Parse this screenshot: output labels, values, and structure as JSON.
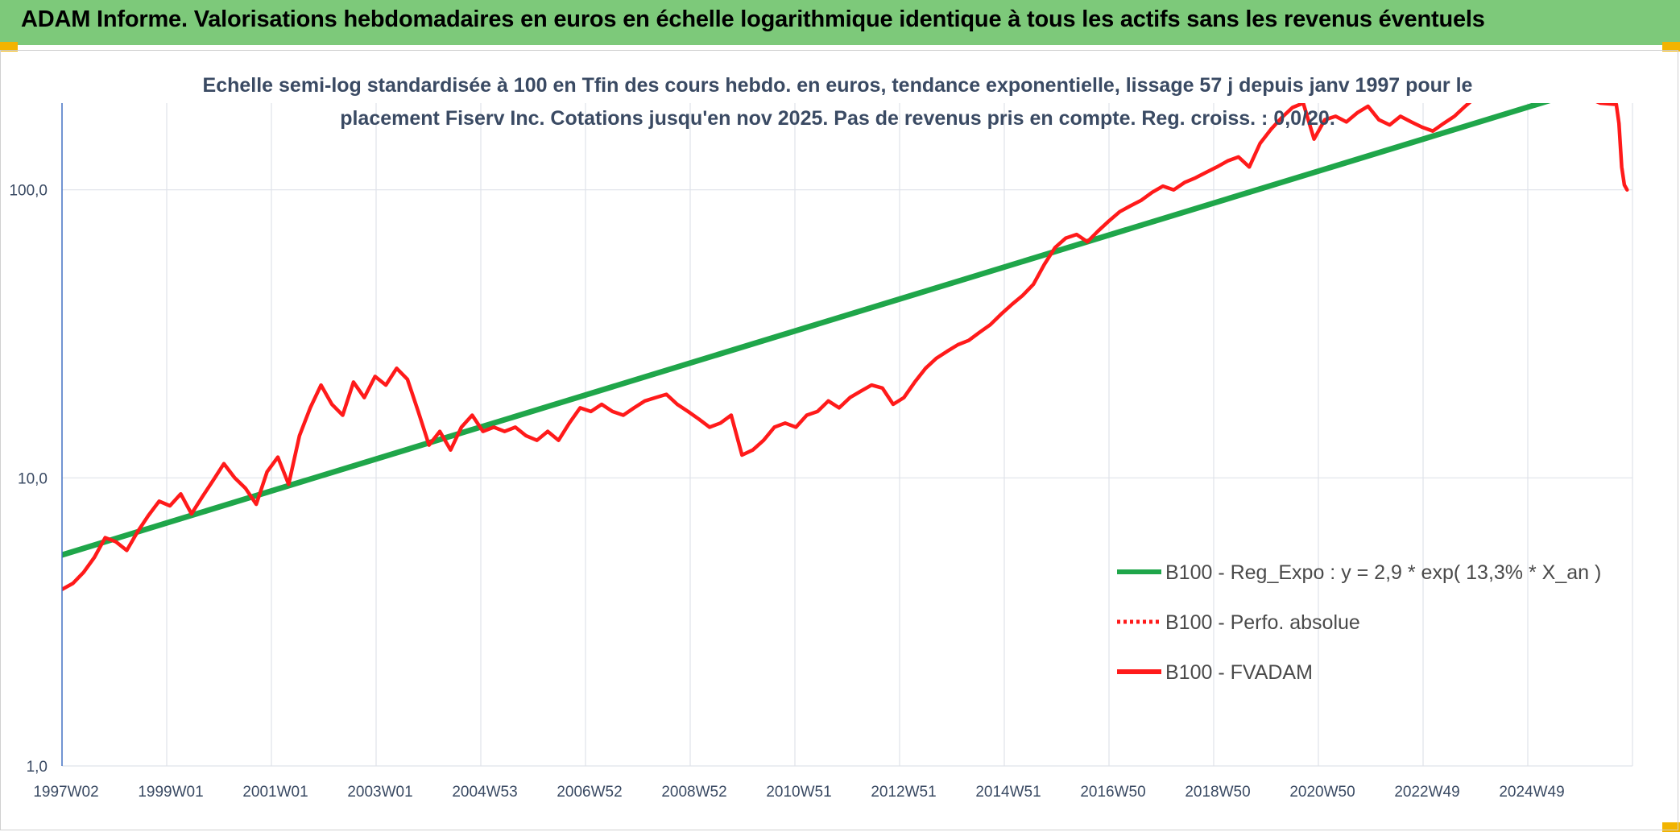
{
  "header": {
    "title": "ADAM Informe. Valorisations hebdomadaires en euros en échelle logarithmique identique à tous les actifs sans les revenus éventuels"
  },
  "chart_data": {
    "type": "line",
    "title_line1": "Echelle semi-log standardisée à 100 en Tfin des cours hebdo. en euros, tendance exponentielle, lissage 57 j depuis janv 1997 pour le",
    "title_line2": "placement Fiserv Inc. Cotations jusqu'en nov 2025. Pas de revenus pris en compte. Reg. croiss. : 0,0/20.",
    "y_scale": "log",
    "ylim": [
      1,
      200
    ],
    "xlim": [
      1997.0,
      2026.1
    ],
    "y_ticks": [
      {
        "value": 100,
        "label": "100,0"
      },
      {
        "value": 10,
        "label": "10,0"
      },
      {
        "value": 1,
        "label": "1,0"
      }
    ],
    "x_ticks": [
      "1997W02",
      "1999W01",
      "2001W01",
      "2003W01",
      "2004W53",
      "2006W52",
      "2008W52",
      "2010W51",
      "2012W51",
      "2014W51",
      "2016W50",
      "2018W50",
      "2020W50",
      "2022W49",
      "2024W49"
    ],
    "grid": true,
    "legend_position": "bottom-right",
    "series": [
      {
        "name": "B100 - Reg_Expo : y = 2,9 * exp( 13,3% *  X_an )",
        "color": "#1fa64a",
        "style": "solid",
        "points": [
          [
            1997.0,
            5.4
          ],
          [
            2026.1,
            250
          ]
        ]
      },
      {
        "name": "B100 - Perfo. absolue",
        "color": "#ff1a1a",
        "style": "dotted",
        "points": []
      },
      {
        "name": "B100 - FVADAM",
        "color": "#ff1a1a",
        "style": "solid",
        "points": [
          [
            1997.0,
            4.1
          ],
          [
            1997.2,
            4.3
          ],
          [
            1997.4,
            4.7
          ],
          [
            1997.6,
            5.3
          ],
          [
            1997.8,
            6.2
          ],
          [
            1998.0,
            6.0
          ],
          [
            1998.2,
            5.6
          ],
          [
            1998.4,
            6.5
          ],
          [
            1998.6,
            7.4
          ],
          [
            1998.8,
            8.3
          ],
          [
            1999.0,
            8.0
          ],
          [
            1999.2,
            8.8
          ],
          [
            1999.4,
            7.5
          ],
          [
            1999.6,
            8.6
          ],
          [
            1999.8,
            9.8
          ],
          [
            2000.0,
            11.2
          ],
          [
            2000.2,
            10.0
          ],
          [
            2000.4,
            9.2
          ],
          [
            2000.6,
            8.1
          ],
          [
            2000.8,
            10.5
          ],
          [
            2001.0,
            11.8
          ],
          [
            2001.2,
            9.5
          ],
          [
            2001.4,
            14.0
          ],
          [
            2001.6,
            17.5
          ],
          [
            2001.8,
            21.0
          ],
          [
            2002.0,
            18.0
          ],
          [
            2002.2,
            16.5
          ],
          [
            2002.4,
            21.5
          ],
          [
            2002.6,
            19.0
          ],
          [
            2002.8,
            22.5
          ],
          [
            2003.0,
            21.0
          ],
          [
            2003.2,
            24.0
          ],
          [
            2003.4,
            22.0
          ],
          [
            2003.6,
            17.0
          ],
          [
            2003.8,
            13.0
          ],
          [
            2004.0,
            14.5
          ],
          [
            2004.2,
            12.5
          ],
          [
            2004.4,
            15.0
          ],
          [
            2004.6,
            16.5
          ],
          [
            2004.8,
            14.5
          ],
          [
            2005.0,
            15.0
          ],
          [
            2005.2,
            14.5
          ],
          [
            2005.4,
            15.0
          ],
          [
            2005.6,
            14.0
          ],
          [
            2005.8,
            13.5
          ],
          [
            2006.0,
            14.5
          ],
          [
            2006.2,
            13.5
          ],
          [
            2006.4,
            15.5
          ],
          [
            2006.6,
            17.5
          ],
          [
            2006.8,
            17.0
          ],
          [
            2007.0,
            18.0
          ],
          [
            2007.2,
            17.0
          ],
          [
            2007.4,
            16.5
          ],
          [
            2007.6,
            17.5
          ],
          [
            2007.8,
            18.5
          ],
          [
            2008.0,
            19.0
          ],
          [
            2008.2,
            19.5
          ],
          [
            2008.4,
            18.0
          ],
          [
            2008.6,
            17.0
          ],
          [
            2008.8,
            16.0
          ],
          [
            2009.0,
            15.0
          ],
          [
            2009.2,
            15.5
          ],
          [
            2009.4,
            16.5
          ],
          [
            2009.6,
            12.0
          ],
          [
            2009.8,
            12.5
          ],
          [
            2010.0,
            13.5
          ],
          [
            2010.2,
            15.0
          ],
          [
            2010.4,
            15.5
          ],
          [
            2010.6,
            15.0
          ],
          [
            2010.8,
            16.5
          ],
          [
            2011.0,
            17.0
          ],
          [
            2011.2,
            18.5
          ],
          [
            2011.4,
            17.5
          ],
          [
            2011.6,
            19.0
          ],
          [
            2011.8,
            20.0
          ],
          [
            2012.0,
            21.0
          ],
          [
            2012.2,
            20.5
          ],
          [
            2012.4,
            18.0
          ],
          [
            2012.6,
            19.0
          ],
          [
            2012.8,
            21.5
          ],
          [
            2013.0,
            24.0
          ],
          [
            2013.2,
            26.0
          ],
          [
            2013.4,
            27.5
          ],
          [
            2013.6,
            29.0
          ],
          [
            2013.8,
            30.0
          ],
          [
            2014.0,
            32.0
          ],
          [
            2014.2,
            34.0
          ],
          [
            2014.4,
            37.0
          ],
          [
            2014.6,
            40.0
          ],
          [
            2014.8,
            43.0
          ],
          [
            2015.0,
            47.0
          ],
          [
            2015.2,
            55.0
          ],
          [
            2015.4,
            63.0
          ],
          [
            2015.6,
            68.0
          ],
          [
            2015.8,
            70.0
          ],
          [
            2016.0,
            66.0
          ],
          [
            2016.2,
            72.0
          ],
          [
            2016.4,
            78.0
          ],
          [
            2016.6,
            84.0
          ],
          [
            2016.8,
            88.0
          ],
          [
            2017.0,
            92.0
          ],
          [
            2017.2,
            98.0
          ],
          [
            2017.4,
            103.0
          ],
          [
            2017.6,
            100.0
          ],
          [
            2017.8,
            106.0
          ],
          [
            2018.0,
            110.0
          ],
          [
            2018.2,
            115.0
          ],
          [
            2018.4,
            120.0
          ],
          [
            2018.6,
            126.0
          ],
          [
            2018.8,
            130.0
          ],
          [
            2019.0,
            120.0
          ],
          [
            2019.2,
            145.0
          ],
          [
            2019.4,
            162.0
          ],
          [
            2019.6,
            178.0
          ],
          [
            2019.8,
            193.0
          ],
          [
            2020.0,
            200.0
          ],
          [
            2020.2,
            150.0
          ],
          [
            2020.4,
            175.0
          ],
          [
            2020.6,
            180.0
          ],
          [
            2020.8,
            172.0
          ],
          [
            2021.0,
            185.0
          ],
          [
            2021.2,
            195.0
          ],
          [
            2021.4,
            175.0
          ],
          [
            2021.6,
            168.0
          ],
          [
            2021.8,
            180.0
          ],
          [
            2022.0,
            172.0
          ],
          [
            2022.2,
            165.0
          ],
          [
            2022.4,
            160.0
          ],
          [
            2022.6,
            170.0
          ],
          [
            2022.8,
            180.0
          ],
          [
            2023.0,
            195.0
          ],
          [
            2023.2,
            210.0
          ],
          [
            2025.0,
            220.0
          ],
          [
            2025.5,
            200.0
          ],
          [
            2025.8,
            198.0
          ],
          [
            2025.85,
            170.0
          ],
          [
            2025.9,
            120.0
          ],
          [
            2025.95,
            104.0
          ],
          [
            2026.0,
            100.0
          ]
        ]
      }
    ]
  }
}
